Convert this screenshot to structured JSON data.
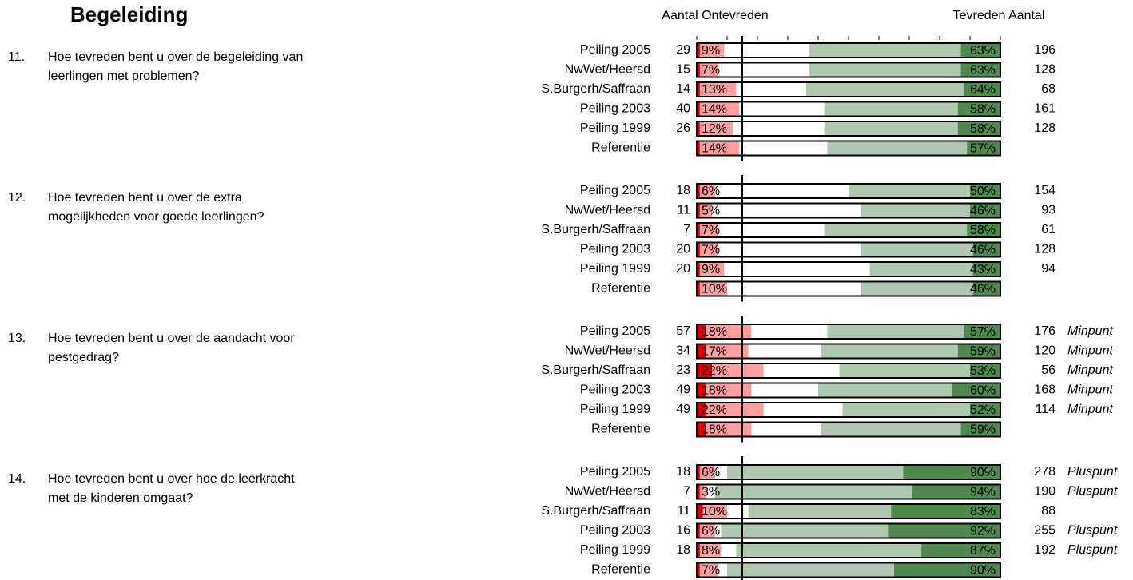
{
  "header": {
    "title": "Begeleiding",
    "left_heading": "Aantal Ontevreden",
    "right_heading": "Tevreden Aantal"
  },
  "chart_data": {
    "type": "diverging-bar",
    "xlim": [
      0,
      100
    ],
    "xticks": [
      0,
      10,
      20,
      30,
      40,
      50,
      60,
      70,
      80,
      90,
      100
    ],
    "marker": 15,
    "colors": {
      "very_dissatisfied": "#e00000",
      "dissatisfied": "#ff9e9e",
      "satisfied": "#b0c8b0",
      "very_satisfied": "#4e8a4e"
    },
    "groups": [
      {
        "number": "11.",
        "question": [
          "Hoe tevreden bent u over de begeleiding van",
          "leerlingen met problemen?"
        ],
        "rows": [
          {
            "label": "Peiling 2005",
            "count_dissatisfied": 29,
            "very_dissatisfied": 1,
            "dissatisfied": 9,
            "dissatisfied_label": "9%",
            "satisfied": 63,
            "satisfied_label": "63%",
            "very_satisfied": 13,
            "count_satisfied": 196
          },
          {
            "label": "NwWet/Heersd",
            "count_dissatisfied": 15,
            "very_dissatisfied": 1,
            "dissatisfied": 7,
            "dissatisfied_label": "7%",
            "satisfied": 63,
            "satisfied_label": "63%",
            "very_satisfied": 13,
            "count_satisfied": 128
          },
          {
            "label": "S.Burgerh/Saffraan",
            "count_dissatisfied": 14,
            "very_dissatisfied": 1,
            "dissatisfied": 13,
            "dissatisfied_label": "13%",
            "satisfied": 64,
            "satisfied_label": "64%",
            "very_satisfied": 12,
            "count_satisfied": 68
          },
          {
            "label": "Peiling 2003",
            "count_dissatisfied": 40,
            "very_dissatisfied": 1,
            "dissatisfied": 14,
            "dissatisfied_label": "14%",
            "satisfied": 58,
            "satisfied_label": "58%",
            "very_satisfied": 14,
            "count_satisfied": 161
          },
          {
            "label": "Peiling 1999",
            "count_dissatisfied": 26,
            "very_dissatisfied": 1,
            "dissatisfied": 12,
            "dissatisfied_label": "12%",
            "satisfied": 58,
            "satisfied_label": "58%",
            "very_satisfied": 14,
            "count_satisfied": 128
          },
          {
            "label": "Referentie",
            "very_dissatisfied": 1,
            "dissatisfied": 14,
            "dissatisfied_label": "14%",
            "satisfied": 57,
            "satisfied_label": "57%",
            "very_satisfied": 11
          }
        ]
      },
      {
        "number": "12.",
        "question": [
          "Hoe tevreden bent u over de extra",
          "mogelijkheden voor goede leerlingen?"
        ],
        "rows": [
          {
            "label": "Peiling 2005",
            "count_dissatisfied": 18,
            "very_dissatisfied": 1,
            "dissatisfied": 6,
            "dissatisfied_label": "6%",
            "satisfied": 50,
            "satisfied_label": "50%",
            "very_satisfied": 10,
            "count_satisfied": 154
          },
          {
            "label": "NwWet/Heersd",
            "count_dissatisfied": 11,
            "very_dissatisfied": 1,
            "dissatisfied": 5,
            "dissatisfied_label": "5%",
            "satisfied": 46,
            "satisfied_label": "46%",
            "very_satisfied": 10,
            "count_satisfied": 93
          },
          {
            "label": "S.Burgerh/Saffraan",
            "count_dissatisfied": 7,
            "very_dissatisfied": 1,
            "dissatisfied": 7,
            "dissatisfied_label": "7%",
            "satisfied": 58,
            "satisfied_label": "58%",
            "very_satisfied": 11,
            "count_satisfied": 61
          },
          {
            "label": "Peiling 2003",
            "count_dissatisfied": 20,
            "very_dissatisfied": 1,
            "dissatisfied": 7,
            "dissatisfied_label": "7%",
            "satisfied": 46,
            "satisfied_label": "46%",
            "very_satisfied": 9,
            "count_satisfied": 128
          },
          {
            "label": "Peiling 1999",
            "count_dissatisfied": 20,
            "very_dissatisfied": 1,
            "dissatisfied": 9,
            "dissatisfied_label": "9%",
            "satisfied": 43,
            "satisfied_label": "43%",
            "very_satisfied": 9,
            "count_satisfied": 94
          },
          {
            "label": "Referentie",
            "very_dissatisfied": 1,
            "dissatisfied": 10,
            "dissatisfied_label": "10%",
            "satisfied": 46,
            "satisfied_label": "46%",
            "very_satisfied": 9
          }
        ]
      },
      {
        "number": "13.",
        "question": [
          "Hoe tevreden bent u over de aandacht voor",
          "pestgedrag?"
        ],
        "rows": [
          {
            "label": "Peiling 2005",
            "count_dissatisfied": 57,
            "very_dissatisfied": 3,
            "dissatisfied": 18,
            "dissatisfied_label": "18%",
            "satisfied": 57,
            "satisfied_label": "57%",
            "very_satisfied": 12,
            "count_satisfied": 176,
            "verdict": "Minpunt"
          },
          {
            "label": "NwWet/Heersd",
            "count_dissatisfied": 34,
            "very_dissatisfied": 3,
            "dissatisfied": 17,
            "dissatisfied_label": "17%",
            "satisfied": 59,
            "satisfied_label": "59%",
            "very_satisfied": 14,
            "count_satisfied": 120,
            "verdict": "Minpunt"
          },
          {
            "label": "S.Burgerh/Saffraan",
            "count_dissatisfied": 23,
            "very_dissatisfied": 5,
            "dissatisfied": 22,
            "dissatisfied_label": "22%",
            "satisfied": 53,
            "satisfied_label": "53%",
            "very_satisfied": 10,
            "count_satisfied": 56,
            "verdict": "Minpunt"
          },
          {
            "label": "Peiling 2003",
            "count_dissatisfied": 49,
            "very_dissatisfied": 3,
            "dissatisfied": 18,
            "dissatisfied_label": "18%",
            "satisfied": 60,
            "satisfied_label": "60%",
            "very_satisfied": 16,
            "count_satisfied": 168,
            "verdict": "Minpunt"
          },
          {
            "label": "Peiling 1999",
            "count_dissatisfied": 49,
            "very_dissatisfied": 3,
            "dissatisfied": 22,
            "dissatisfied_label": "22%",
            "satisfied": 52,
            "satisfied_label": "52%",
            "very_satisfied": 10,
            "count_satisfied": 114,
            "verdict": "Minpunt"
          },
          {
            "label": "Referentie",
            "very_dissatisfied": 3,
            "dissatisfied": 18,
            "dissatisfied_label": "18%",
            "satisfied": 59,
            "satisfied_label": "59%",
            "very_satisfied": 13
          }
        ]
      },
      {
        "number": "14.",
        "question": [
          "Hoe tevreden bent u over hoe de leerkracht",
          "met de kinderen omgaat?"
        ],
        "rows": [
          {
            "label": "Peiling 2005",
            "count_dissatisfied": 18,
            "very_dissatisfied": 1,
            "dissatisfied": 6,
            "dissatisfied_label": "6%",
            "satisfied": 90,
            "satisfied_label": "90%",
            "very_satisfied": 32,
            "count_satisfied": 278,
            "verdict": "Pluspunt"
          },
          {
            "label": "NwWet/Heersd",
            "count_dissatisfied": 7,
            "very_dissatisfied": 1,
            "dissatisfied": 3,
            "dissatisfied_label": "3%",
            "satisfied": 94,
            "satisfied_label": "94%",
            "very_satisfied": 29,
            "count_satisfied": 190,
            "verdict": "Pluspunt"
          },
          {
            "label": "S.Burgerh/Saffraan",
            "count_dissatisfied": 11,
            "very_dissatisfied": 2,
            "dissatisfied": 10,
            "dissatisfied_label": "10%",
            "satisfied": 83,
            "satisfied_label": "83%",
            "very_satisfied": 36,
            "count_satisfied": 88
          },
          {
            "label": "Peiling 2003",
            "count_dissatisfied": 16,
            "very_dissatisfied": 1,
            "dissatisfied": 6,
            "dissatisfied_label": "6%",
            "satisfied": 92,
            "satisfied_label": "92%",
            "very_satisfied": 37,
            "count_satisfied": 255,
            "verdict": "Pluspunt"
          },
          {
            "label": "Peiling 1999",
            "count_dissatisfied": 18,
            "very_dissatisfied": 1,
            "dissatisfied": 8,
            "dissatisfied_label": "8%",
            "satisfied": 87,
            "satisfied_label": "87%",
            "very_satisfied": 26,
            "count_satisfied": 192,
            "verdict": "Pluspunt"
          },
          {
            "label": "Referentie",
            "very_dissatisfied": 1,
            "dissatisfied": 7,
            "dissatisfied_label": "7%",
            "satisfied": 90,
            "satisfied_label": "90%",
            "very_satisfied": 35
          }
        ]
      }
    ]
  }
}
